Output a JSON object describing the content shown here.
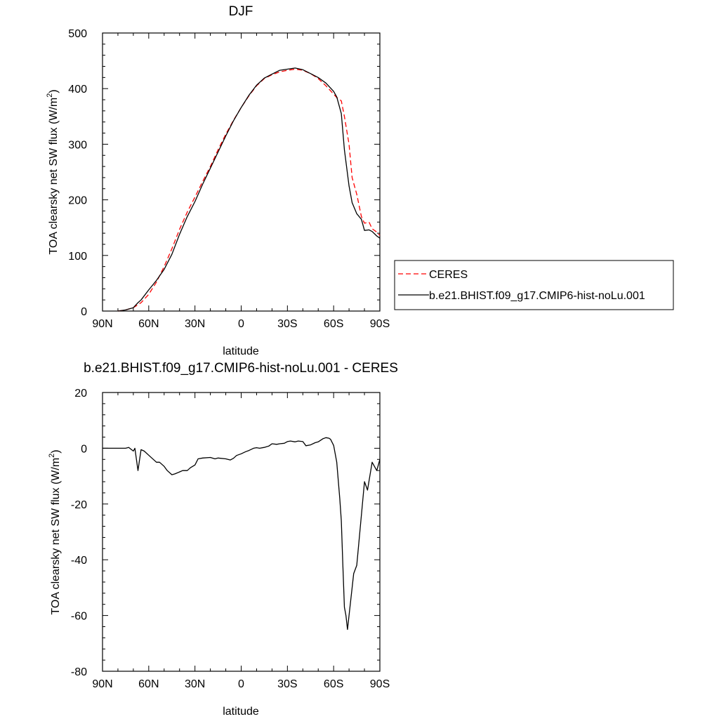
{
  "chart_data": [
    {
      "type": "line",
      "title": "DJF",
      "xlabel": "latitude",
      "ylabel_main": "TOA clearsky net SW flux (W/m",
      "ylabel_sup": "2",
      "ylabel_end": ")",
      "xlim": [
        -90,
        90
      ],
      "ylim": [
        0,
        500
      ],
      "xticks": [
        -90,
        -60,
        -30,
        0,
        30,
        60,
        90
      ],
      "xtick_labels": [
        "90N",
        "60N",
        "30N",
        "0",
        "30S",
        "60S",
        "90S"
      ],
      "yticks": [
        0,
        100,
        200,
        300,
        400,
        500
      ],
      "ytick_labels": [
        "0",
        "100",
        "200",
        "300",
        "400",
        "500"
      ],
      "legend_position": "right",
      "series": [
        {
          "name": "CERES",
          "color": "#ff0000",
          "dash": "dashed",
          "x": [
            -80,
            -75,
            -70,
            -65,
            -60,
            -55,
            -50,
            -45,
            -40,
            -35,
            -30,
            -25,
            -20,
            -15,
            -10,
            -5,
            0,
            5,
            10,
            15,
            20,
            25,
            30,
            35,
            40,
            45,
            50,
            55,
            60,
            62,
            65,
            67,
            70,
            72,
            75,
            78,
            80,
            83,
            85,
            88,
            90
          ],
          "y": [
            0,
            2,
            6,
            15,
            30,
            52,
            80,
            112,
            147,
            178,
            205,
            233,
            260,
            290,
            318,
            343,
            366,
            387,
            405,
            418,
            425,
            430,
            433,
            435,
            433,
            427,
            418,
            405,
            390,
            384,
            378,
            350,
            300,
            240,
            210,
            170,
            158,
            160,
            148,
            142,
            136
          ]
        },
        {
          "name": "b.e21.BHIST.f09_g17.CMIP6-hist-noLu.001",
          "color": "#000000",
          "dash": "solid",
          "x": [
            -80,
            -75,
            -70,
            -67,
            -65,
            -60,
            -55,
            -50,
            -45,
            -40,
            -35,
            -30,
            -25,
            -20,
            -15,
            -10,
            -5,
            0,
            5,
            10,
            15,
            20,
            25,
            30,
            35,
            40,
            45,
            50,
            55,
            60,
            62,
            65,
            67,
            70,
            72,
            75,
            78,
            80,
            83,
            85,
            88,
            90
          ],
          "y": [
            0,
            2,
            6,
            15,
            20,
            38,
            55,
            75,
            102,
            138,
            170,
            197,
            228,
            257,
            286,
            315,
            342,
            366,
            388,
            406,
            419,
            426,
            433,
            435,
            437,
            434,
            427,
            420,
            410,
            395,
            385,
            355,
            290,
            225,
            195,
            175,
            165,
            145,
            146,
            143,
            135,
            131
          ]
        }
      ]
    },
    {
      "type": "line",
      "title": "b.e21.BHIST.f09_g17.CMIP6-hist-noLu.001 - CERES",
      "xlabel": "latitude",
      "ylabel_main": "TOA clearsky net SW flux (W/m",
      "ylabel_sup": "2",
      "ylabel_end": ")",
      "xlim": [
        -90,
        90
      ],
      "ylim": [
        -80,
        20
      ],
      "xticks": [
        -90,
        -60,
        -30,
        0,
        30,
        60,
        90
      ],
      "xtick_labels": [
        "90N",
        "60N",
        "30N",
        "0",
        "30S",
        "60S",
        "90S"
      ],
      "yticks": [
        -80,
        -60,
        -40,
        -20,
        0,
        20
      ],
      "ytick_labels": [
        "-80",
        "-60",
        "-40",
        "-20",
        "0",
        "20"
      ],
      "series": [
        {
          "name": "",
          "color": "#000000",
          "dash": "solid",
          "x": [
            -90,
            -85,
            -80,
            -75,
            -73,
            -70,
            -69,
            -67,
            -65,
            -63,
            -60,
            -58,
            -55,
            -53,
            -50,
            -48,
            -45,
            -43,
            -40,
            -38,
            -35,
            -33,
            -30,
            -28,
            -25,
            -20,
            -17,
            -15,
            -10,
            -7,
            -5,
            -3,
            0,
            3,
            5,
            8,
            10,
            12,
            15,
            18,
            20,
            23,
            25,
            28,
            30,
            32,
            35,
            37,
            40,
            42,
            45,
            48,
            50,
            53,
            55,
            57,
            58,
            60,
            62,
            64,
            65,
            66,
            67,
            68,
            69,
            70,
            72,
            73,
            75,
            77,
            80,
            82,
            85,
            88,
            90
          ],
          "y": [
            0,
            0,
            0,
            0,
            0.3,
            -1,
            0,
            -8,
            -0.5,
            -1,
            -2.5,
            -3.5,
            -5,
            -5,
            -6.5,
            -8,
            -9.5,
            -9.2,
            -8.5,
            -8,
            -8,
            -7,
            -6,
            -3.8,
            -3.5,
            -3.3,
            -3.8,
            -3.5,
            -3.8,
            -4.2,
            -3.6,
            -2.6,
            -2.0,
            -1.2,
            -0.8,
            0,
            0.2,
            0,
            0.3,
            0.8,
            1.6,
            1.4,
            1.6,
            1.8,
            2.4,
            2.6,
            2.3,
            2.6,
            2.4,
            0.9,
            1.2,
            2.0,
            2.3,
            3.4,
            3.8,
            3.6,
            3.2,
            1.0,
            -5,
            -18,
            -26,
            -42,
            -57,
            -60,
            -65,
            -60,
            -50,
            -45,
            -42,
            -30,
            -12,
            -15,
            -5,
            -8,
            -4
          ]
        }
      ]
    }
  ]
}
